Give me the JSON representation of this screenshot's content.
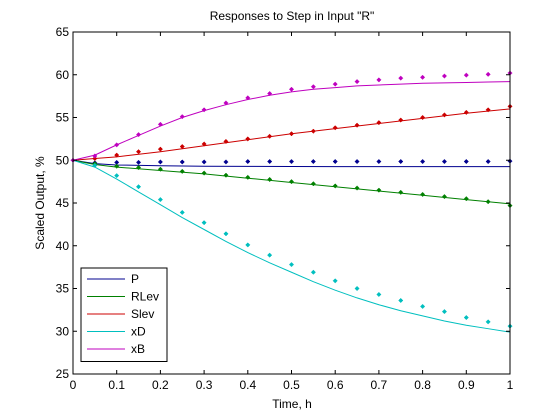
{
  "chart_data": {
    "type": "line",
    "title": "Responses to Step in Input \"R\"",
    "xlabel": "Time, h",
    "ylabel": "Scaled Output, %",
    "xlim": [
      0,
      1
    ],
    "ylim": [
      25,
      65
    ],
    "xticks": [
      0,
      0.1,
      0.2,
      0.3,
      0.4,
      0.5,
      0.6,
      0.7,
      0.8,
      0.9,
      1
    ],
    "xtick_labels": [
      "0",
      "0.1",
      "0.2",
      "0.3",
      "0.4",
      "0.5",
      "0.6",
      "0.7",
      "0.8",
      "0.9",
      "1"
    ],
    "yticks": [
      25,
      30,
      35,
      40,
      45,
      50,
      55,
      60,
      65
    ],
    "ytick_labels": [
      "25",
      "30",
      "35",
      "40",
      "45",
      "50",
      "55",
      "60",
      "65"
    ],
    "grid": false,
    "legend_position": "bottom-left",
    "series": [
      {
        "name": "P",
        "color": "#00008f",
        "line": {
          "x": [
            0,
            0.05,
            0.1,
            0.2,
            0.3,
            0.4,
            0.5,
            0.6,
            0.7,
            0.8,
            0.9,
            1.0
          ],
          "y": [
            50,
            49.6,
            49.45,
            49.35,
            49.3,
            49.28,
            49.27,
            49.26,
            49.26,
            49.25,
            49.25,
            49.25
          ]
        },
        "markers": {
          "x": [
            0,
            0.05,
            0.1,
            0.15,
            0.2,
            0.25,
            0.3,
            0.35,
            0.4,
            0.45,
            0.5,
            0.55,
            0.6,
            0.65,
            0.7,
            0.75,
            0.8,
            0.85,
            0.9,
            0.95,
            1.0
          ],
          "y": [
            50,
            49.7,
            49.75,
            49.75,
            49.8,
            49.8,
            49.8,
            49.8,
            49.85,
            49.85,
            49.85,
            49.85,
            49.85,
            49.85,
            49.85,
            49.85,
            49.85,
            49.85,
            49.85,
            49.85,
            49.9
          ]
        }
      },
      {
        "name": "RLev",
        "color": "#008000",
        "line": {
          "x": [
            0,
            0.05,
            0.1,
            0.2,
            0.3,
            0.4,
            0.5,
            0.6,
            0.7,
            0.8,
            0.9,
            1.0
          ],
          "y": [
            50,
            49.5,
            49.2,
            48.8,
            48.4,
            47.9,
            47.4,
            46.9,
            46.4,
            45.9,
            45.4,
            44.9
          ]
        },
        "markers": {
          "x": [
            0,
            0.05,
            0.1,
            0.15,
            0.2,
            0.25,
            0.3,
            0.35,
            0.4,
            0.45,
            0.5,
            0.55,
            0.6,
            0.65,
            0.7,
            0.75,
            0.8,
            0.85,
            0.9,
            0.95,
            1.0
          ],
          "y": [
            50,
            49.6,
            49.3,
            49.15,
            48.95,
            48.7,
            48.5,
            48.25,
            48.0,
            47.75,
            47.5,
            47.25,
            47.0,
            46.75,
            46.5,
            46.25,
            46.0,
            45.75,
            45.5,
            45.15,
            44.7
          ]
        }
      },
      {
        "name": "Slev",
        "color": "#cc0000",
        "line": {
          "x": [
            0,
            0.05,
            0.1,
            0.2,
            0.3,
            0.4,
            0.5,
            0.6,
            0.7,
            0.8,
            0.9,
            1.0
          ],
          "y": [
            50,
            50.2,
            50.4,
            51.0,
            51.7,
            52.4,
            53.1,
            53.7,
            54.3,
            54.9,
            55.5,
            56.0
          ]
        },
        "markers": {
          "x": [
            0,
            0.05,
            0.1,
            0.15,
            0.2,
            0.25,
            0.3,
            0.35,
            0.4,
            0.45,
            0.5,
            0.55,
            0.6,
            0.65,
            0.7,
            0.75,
            0.8,
            0.85,
            0.9,
            0.95,
            1.0
          ],
          "y": [
            50,
            50.2,
            50.6,
            51.0,
            51.3,
            51.6,
            51.9,
            52.2,
            52.5,
            52.8,
            53.1,
            53.4,
            53.8,
            54.1,
            54.4,
            54.7,
            55.0,
            55.3,
            55.6,
            55.9,
            56.3
          ]
        }
      },
      {
        "name": "xD",
        "color": "#00bfbf",
        "line": {
          "x": [
            0,
            0.05,
            0.1,
            0.15,
            0.2,
            0.25,
            0.3,
            0.35,
            0.4,
            0.45,
            0.5,
            0.55,
            0.6,
            0.65,
            0.7,
            0.75,
            0.8,
            0.85,
            0.9,
            0.95,
            1.0
          ],
          "y": [
            50,
            49.2,
            47.8,
            46.3,
            44.8,
            43.3,
            41.9,
            40.5,
            39.2,
            38.0,
            36.9,
            35.8,
            34.8,
            33.9,
            33.1,
            32.4,
            31.8,
            31.2,
            30.7,
            30.3,
            29.9
          ]
        },
        "markers": {
          "x": [
            0,
            0.05,
            0.1,
            0.15,
            0.2,
            0.25,
            0.3,
            0.35,
            0.4,
            0.45,
            0.5,
            0.55,
            0.6,
            0.65,
            0.7,
            0.75,
            0.8,
            0.85,
            0.9,
            0.95,
            1.0
          ],
          "y": [
            50,
            49.4,
            48.2,
            46.9,
            45.4,
            43.9,
            42.7,
            41.4,
            40.1,
            38.9,
            37.8,
            36.9,
            35.9,
            35.0,
            34.3,
            33.6,
            32.9,
            32.3,
            31.6,
            31.1,
            30.6
          ]
        }
      },
      {
        "name": "xB",
        "color": "#bf00bf",
        "line": {
          "x": [
            0,
            0.05,
            0.1,
            0.15,
            0.2,
            0.25,
            0.3,
            0.35,
            0.4,
            0.45,
            0.5,
            0.55,
            0.6,
            0.65,
            0.7,
            0.75,
            0.8,
            0.85,
            0.9,
            0.95,
            1.0
          ],
          "y": [
            50,
            50.6,
            51.8,
            52.9,
            54.0,
            55.0,
            55.8,
            56.5,
            57.1,
            57.6,
            58.0,
            58.3,
            58.5,
            58.7,
            58.8,
            58.9,
            59.0,
            59.05,
            59.1,
            59.15,
            59.2
          ]
        },
        "markers": {
          "x": [
            0,
            0.05,
            0.1,
            0.15,
            0.2,
            0.25,
            0.3,
            0.35,
            0.4,
            0.45,
            0.5,
            0.55,
            0.6,
            0.65,
            0.7,
            0.75,
            0.8,
            0.85,
            0.9,
            0.95,
            1.0
          ],
          "y": [
            50,
            50.5,
            51.8,
            53.0,
            54.2,
            55.1,
            55.9,
            56.7,
            57.3,
            57.8,
            58.3,
            58.6,
            58.9,
            59.2,
            59.4,
            59.6,
            59.7,
            59.85,
            59.95,
            60.05,
            60.2
          ]
        }
      }
    ]
  }
}
